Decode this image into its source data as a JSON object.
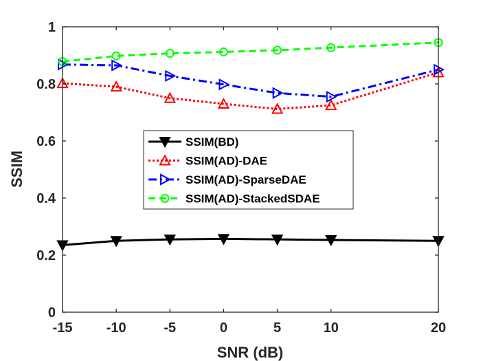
{
  "chart_data": {
    "type": "line",
    "title": "",
    "xlabel": "SNR (dB)",
    "ylabel": "SSIM",
    "xlim": [
      -15,
      20
    ],
    "ylim": [
      0,
      1
    ],
    "x": [
      -15,
      -10,
      -5,
      0,
      5,
      10,
      20
    ],
    "xticks": [
      "-15",
      "-10",
      "-5",
      "0",
      "5",
      "10",
      "20"
    ],
    "yticks": [
      "0",
      "0.2",
      "0.4",
      "0.6",
      "0.8",
      "1"
    ],
    "grid": false,
    "legend_position": "center-left",
    "series": [
      {
        "name": "SSIM(BD)",
        "color": "#000000",
        "dash": "solid",
        "marker": "triangle-down",
        "values": [
          0.235,
          0.25,
          0.255,
          0.257,
          0.255,
          0.253,
          0.25
        ]
      },
      {
        "name": "SSIM(AD)-DAE",
        "color": "#ff0000",
        "dash": "dotted",
        "marker": "triangle-up",
        "values": [
          0.802,
          0.79,
          0.75,
          0.73,
          0.712,
          0.725,
          0.84
        ]
      },
      {
        "name": "SSIM(AD)-SparseDAE",
        "color": "#0000ff",
        "dash": "dashdot",
        "marker": "triangle-right",
        "values": [
          0.868,
          0.865,
          0.828,
          0.798,
          0.768,
          0.755,
          0.85
        ]
      },
      {
        "name": "SSIM(AD)-StackedSDAE",
        "color": "#00ff00",
        "dash": "dashed",
        "marker": "circle",
        "values": [
          0.878,
          0.898,
          0.907,
          0.912,
          0.918,
          0.927,
          0.945
        ]
      }
    ]
  }
}
